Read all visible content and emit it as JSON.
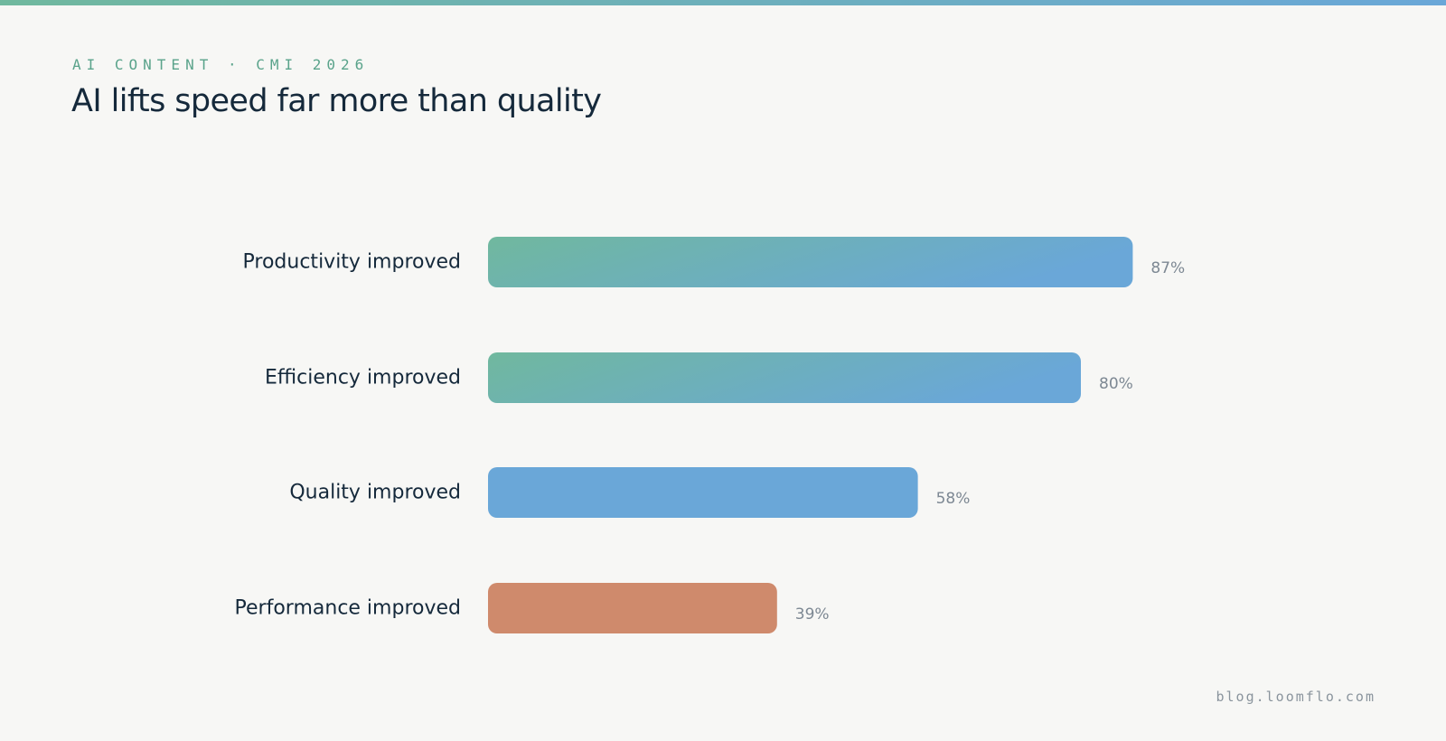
{
  "eyebrow": "AI CONTENT · CMI 2026",
  "title": "AI lifts speed far more than quality",
  "footer": "blog.loomflo.com",
  "colors": {
    "background": "#f7f7f5",
    "accent_green": "#70b89e",
    "accent_blue": "#6aa7d8",
    "accent_terracotta": "#cf8a6c",
    "text_dark": "#15293b",
    "text_muted": "#7d8893"
  },
  "chart_data": {
    "type": "bar",
    "orientation": "horizontal",
    "categories": [
      "Productivity improved",
      "Efficiency improved",
      "Quality improved",
      "Performance improved"
    ],
    "values": [
      87,
      80,
      58,
      39
    ],
    "value_labels": [
      "87%",
      "80%",
      "58%",
      "39%"
    ],
    "unit": "%",
    "xlim": [
      0,
      100
    ],
    "bar_styles": [
      "gradient",
      "gradient",
      "blue",
      "terracotta"
    ],
    "grid": false,
    "legend": "none"
  }
}
